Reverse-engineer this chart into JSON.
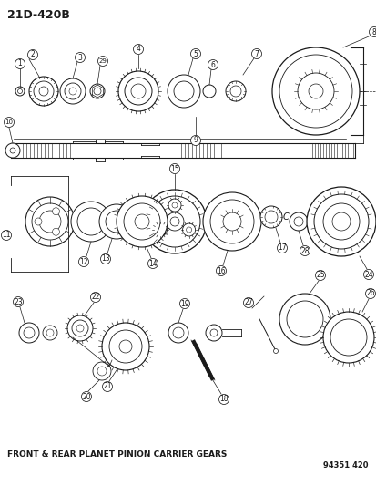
{
  "title": "21D-420B",
  "subtitle": "FRONT & REAR PLANET PINION CARRIER GEARS",
  "part_number": "94351 420",
  "bg": "#ffffff",
  "lc": "#1a1a1a",
  "fig_width": 4.14,
  "fig_height": 5.33,
  "dpi": 100
}
